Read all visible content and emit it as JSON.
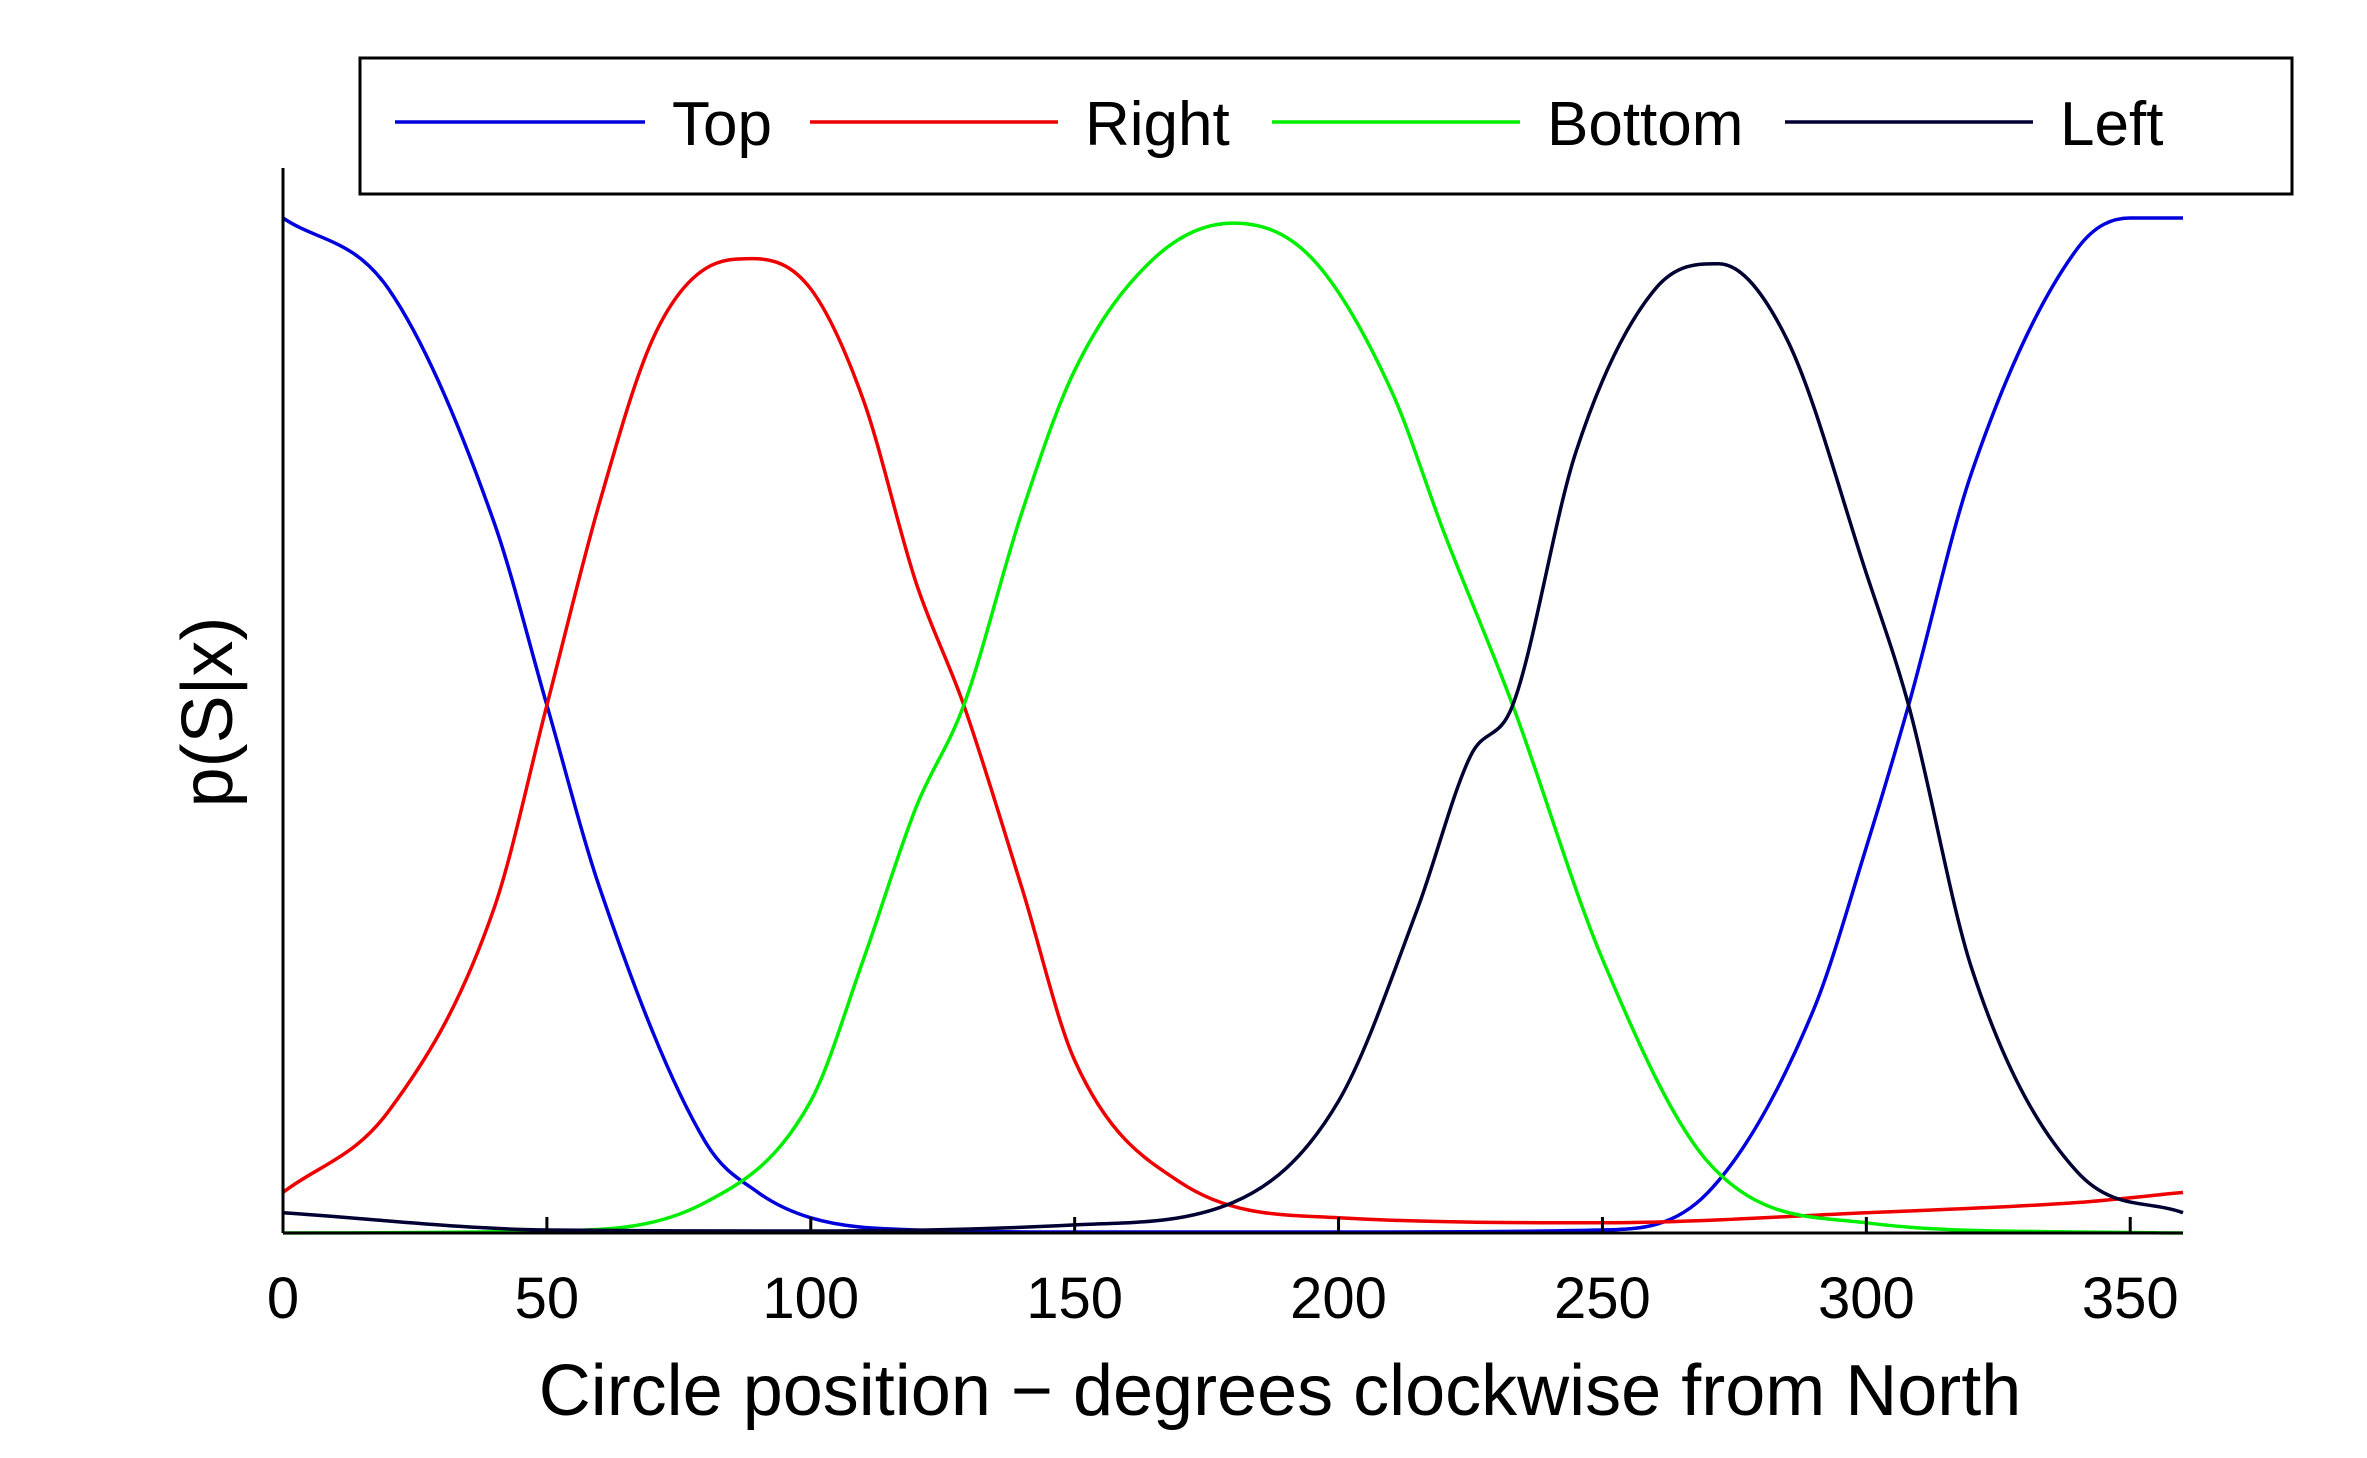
{
  "chart_data": {
    "type": "line",
    "xlabel": "Circle position − degrees clockwise from North",
    "ylabel": "p(S|x)",
    "xlim": [
      0,
      360
    ],
    "ylim": [
      0,
      1
    ],
    "xticks": [
      0,
      50,
      100,
      150,
      200,
      250,
      300,
      350
    ],
    "grid": false,
    "legend_position": "top",
    "series": [
      {
        "name": "Top",
        "color": "#0000dd",
        "x": [
          0,
          20,
          40,
          50,
          60,
          80,
          90,
          100,
          120,
          150,
          200,
          250,
          270,
          290,
          300,
          308,
          320,
          340,
          350,
          360
        ],
        "y": [
          1.0,
          0.93,
          0.7,
          0.52,
          0.34,
          0.09,
          0.04,
          0.015,
          0.003,
          0.001,
          0.001,
          0.003,
          0.04,
          0.22,
          0.38,
          0.52,
          0.75,
          0.97,
          1.0,
          1.0
        ]
      },
      {
        "name": "Right",
        "color": "#ee0000",
        "x": [
          0,
          20,
          40,
          50,
          60,
          70,
          80,
          89,
          100,
          110,
          120,
          129,
          140,
          150,
          170,
          200,
          250,
          300,
          340,
          360
        ],
        "y": [
          0.04,
          0.12,
          0.32,
          0.52,
          0.72,
          0.88,
          0.95,
          0.96,
          0.93,
          0.82,
          0.64,
          0.52,
          0.34,
          0.17,
          0.05,
          0.015,
          0.01,
          0.02,
          0.03,
          0.04
        ]
      },
      {
        "name": "Bottom",
        "color": "#00ee00",
        "x": [
          0,
          50,
          80,
          100,
          110,
          120,
          129,
          140,
          150,
          165,
          180,
          195,
          210,
          220,
          233,
          250,
          270,
          300,
          340,
          360
        ],
        "y": [
          0.0,
          0.002,
          0.03,
          0.13,
          0.27,
          0.42,
          0.52,
          0.71,
          0.85,
          0.96,
          0.995,
          0.96,
          0.83,
          0.69,
          0.52,
          0.27,
          0.07,
          0.01,
          0.001,
          0.0
        ]
      },
      {
        "name": "Left",
        "color": "#000033",
        "x": [
          0,
          50,
          100,
          150,
          180,
          200,
          215,
          225,
          233,
          245,
          260,
          272,
          285,
          300,
          308,
          320,
          340,
          360
        ],
        "y": [
          0.02,
          0.003,
          0.002,
          0.008,
          0.03,
          0.13,
          0.32,
          0.47,
          0.52,
          0.77,
          0.93,
          0.955,
          0.88,
          0.65,
          0.52,
          0.26,
          0.06,
          0.02
        ]
      }
    ]
  }
}
